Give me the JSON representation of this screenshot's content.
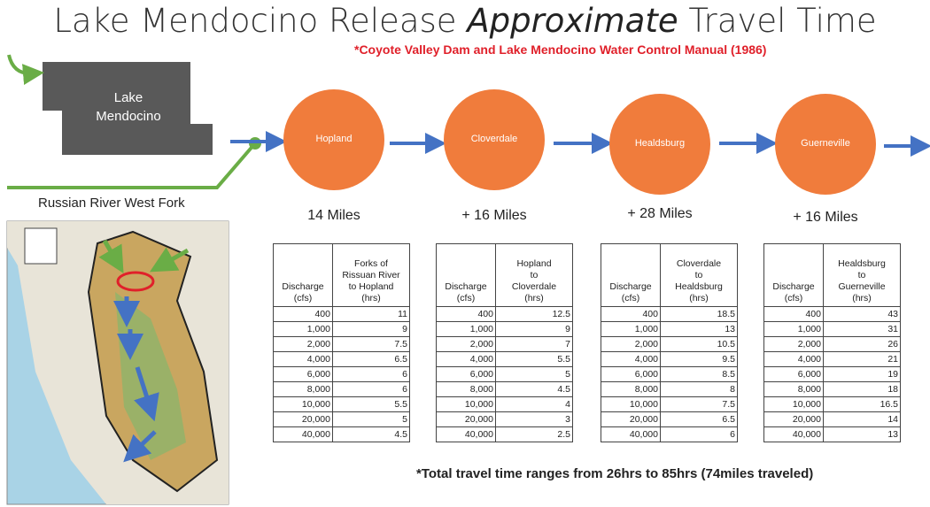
{
  "title": {
    "before": "Lake Mendocino Release",
    "emphasis": "Approximate",
    "after": "Travel Time"
  },
  "subtitle": "*Coyote Valley Dam and Lake Mendocino Water Control Manual (1986)",
  "lake_label": [
    "Lake",
    "Mendocino"
  ],
  "west_fork_label": "Russian River West Fork",
  "nodes": [
    {
      "label": "Hopland",
      "distance": "14 Miles"
    },
    {
      "label": "Cloverdale",
      "distance": "+ 16 Miles"
    },
    {
      "label": "Healdsburg",
      "distance": "+ 28 Miles"
    },
    {
      "label": "Guerneville",
      "distance": "+ 16 Miles"
    }
  ],
  "tables": [
    {
      "header": [
        [
          "Discharge",
          "(cfs)"
        ],
        [
          "Forks of",
          "Rissuan River",
          "to Hopland",
          "(hrs)"
        ]
      ],
      "rows": [
        [
          "400",
          11
        ],
        [
          "1,000",
          9
        ],
        [
          "2,000",
          7.5
        ],
        [
          "4,000",
          6.5
        ],
        [
          "6,000",
          6
        ],
        [
          "8,000",
          6
        ],
        [
          "10,000",
          5.5
        ],
        [
          "20,000",
          5
        ],
        [
          "40,000",
          4.5
        ]
      ]
    },
    {
      "header": [
        [
          "Discharge",
          "(cfs)"
        ],
        [
          "Hopland",
          "to",
          "Cloverdale",
          "(hrs)"
        ]
      ],
      "rows": [
        [
          "400",
          12.5
        ],
        [
          "1,000",
          9
        ],
        [
          "2,000",
          7
        ],
        [
          "4,000",
          5.5
        ],
        [
          "6,000",
          5
        ],
        [
          "8,000",
          4.5
        ],
        [
          "10,000",
          4
        ],
        [
          "20,000",
          3
        ],
        [
          "40,000",
          2.5
        ]
      ]
    },
    {
      "header": [
        [
          "Discharge",
          "(cfs)"
        ],
        [
          "Cloverdale",
          "to",
          "Healdsburg",
          "(hrs)"
        ]
      ],
      "rows": [
        [
          "400",
          18.5
        ],
        [
          "1,000",
          13
        ],
        [
          "2,000",
          10.5
        ],
        [
          "4,000",
          9.5
        ],
        [
          "6,000",
          8.5
        ],
        [
          "8,000",
          8
        ],
        [
          "10,000",
          7.5
        ],
        [
          "20,000",
          6.5
        ],
        [
          "40,000",
          6
        ]
      ]
    },
    {
      "header": [
        [
          "Discharge",
          "(cfs)"
        ],
        [
          "Healdsburg",
          "to",
          "Guerneville",
          "(hrs)"
        ]
      ],
      "rows": [
        [
          "400",
          43
        ],
        [
          "1,000",
          31
        ],
        [
          "2,000",
          26
        ],
        [
          "4,000",
          21
        ],
        [
          "6,000",
          19
        ],
        [
          "8,000",
          18
        ],
        [
          "10,000",
          16.5
        ],
        [
          "20,000",
          14
        ],
        [
          "40,000",
          13
        ]
      ]
    }
  ],
  "footnote": "*Total travel time ranges from 26hrs to 85hrs (74miles traveled)"
}
